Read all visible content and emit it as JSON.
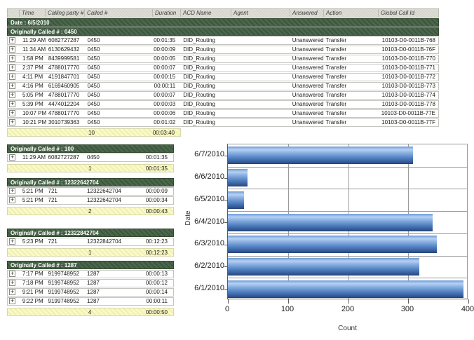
{
  "table": {
    "columns": [
      "Time",
      "Calling party #",
      "Called #",
      "Duration",
      "ACD Name",
      "Agent",
      "Answered",
      "Action",
      "Global Call Id"
    ],
    "date_band": "Date : 6/5/2010",
    "group_band": "Originally Called # : 0450",
    "rows": [
      {
        "time": "11:29 AM",
        "calling": "6082727287",
        "called": "0450",
        "duration": "00:01:35",
        "acd": "DID_Routing",
        "agent": "",
        "answered": "Unanswered",
        "action": "Transfer",
        "global_id": "10103-D0-0011B-768"
      },
      {
        "time": "11:34 AM",
        "calling": "6130629432",
        "called": "0450",
        "duration": "00:00:09",
        "acd": "DID_Routing",
        "agent": "",
        "answered": "Unanswered",
        "action": "Transfer",
        "global_id": "10103-D0-0011B-76F"
      },
      {
        "time": "1:58 PM",
        "calling": "8439999581",
        "called": "0450",
        "duration": "00:00:05",
        "acd": "DID_Routing",
        "agent": "",
        "answered": "Unanswered",
        "action": "Transfer",
        "global_id": "10103-D0-0011B-770"
      },
      {
        "time": "2:37 PM",
        "calling": "4788017770",
        "called": "0450",
        "duration": "00:00:07",
        "acd": "DID_Routing",
        "agent": "",
        "answered": "Unanswered",
        "action": "Transfer",
        "global_id": "10103-D0-0011B-771"
      },
      {
        "time": "4:11 PM",
        "calling": "4191847701",
        "called": "0450",
        "duration": "00:00:15",
        "acd": "DID_Routing",
        "agent": "",
        "answered": "Unanswered",
        "action": "Transfer",
        "global_id": "10103-D0-0011B-772"
      },
      {
        "time": "4:16 PM",
        "calling": "6169460905",
        "called": "0450",
        "duration": "00:00:11",
        "acd": "DID_Routing",
        "agent": "",
        "answered": "Unanswered",
        "action": "Transfer",
        "global_id": "10103-D0-0011B-773"
      },
      {
        "time": "5:05 PM",
        "calling": "4788017770",
        "called": "0450",
        "duration": "00:00:07",
        "acd": "DID_Routing",
        "agent": "",
        "answered": "Unanswered",
        "action": "Transfer",
        "global_id": "10103-D0-0011B-774"
      },
      {
        "time": "5:39 PM",
        "calling": "4474012204",
        "called": "0450",
        "duration": "00:00:03",
        "acd": "DID_Routing",
        "agent": "",
        "answered": "Unanswered",
        "action": "Transfer",
        "global_id": "10103-D0-0011B-778"
      },
      {
        "time": "10:07 PM",
        "calling": "4788017770",
        "called": "0450",
        "duration": "00:00:06",
        "acd": "DID_Routing",
        "agent": "",
        "answered": "Unanswered",
        "action": "Transfer",
        "global_id": "10103-D0-0011B-77E"
      },
      {
        "time": "10:21 PM",
        "calling": "3010739363",
        "called": "0450",
        "duration": "00:01:02",
        "acd": "DID_Routing",
        "agent": "",
        "answered": "Unanswered",
        "action": "Transfer",
        "global_id": "10103-D0-0011B-77F"
      }
    ],
    "summary": {
      "count": "10",
      "duration": "00:03:40"
    }
  },
  "sections": [
    {
      "title": "Originally Called # : 100",
      "rows": [
        {
          "time": "11:29 AM",
          "calling": "6082727287",
          "called": "0450",
          "duration": "00:01:35"
        }
      ],
      "summary": {
        "count": "1",
        "duration": "00:01:35"
      }
    },
    {
      "title": "Originally Called # : 12322642704",
      "rows": [
        {
          "time": "5:21 PM",
          "calling": "721",
          "called": "12322642704",
          "duration": "00:00:09"
        },
        {
          "time": "5:21 PM",
          "calling": "721",
          "called": "12322642704",
          "duration": "00:00:34"
        }
      ],
      "summary": {
        "count": "2",
        "duration": "00:00:43"
      }
    },
    {
      "title": "Originally Called # : 12322842704",
      "rows": [
        {
          "time": "5:23 PM",
          "calling": "721",
          "called": "12322842704",
          "duration": "00:12:23"
        }
      ],
      "summary": {
        "count": "1",
        "duration": "00:12:23"
      }
    },
    {
      "title": "Originally Called # : 1287",
      "rows": [
        {
          "time": "7:17 PM",
          "calling": "9199748952",
          "called": "1287",
          "duration": "00:00:13"
        },
        {
          "time": "7:18 PM",
          "calling": "9199748952",
          "called": "1287",
          "duration": "00:00:12"
        },
        {
          "time": "9:21 PM",
          "calling": "9199748952",
          "called": "1287",
          "duration": "00:00:14"
        },
        {
          "time": "9:22 PM",
          "calling": "9199748952",
          "called": "1287",
          "duration": "00:00:11"
        }
      ],
      "summary": {
        "count": "4",
        "duration": "00:00:50"
      }
    }
  ],
  "chart_data": {
    "type": "bar",
    "orientation": "horizontal",
    "categories": [
      "6/7/2010",
      "6/6/2010",
      "6/5/2010",
      "6/4/2010",
      "6/3/2010",
      "6/2/2010",
      "6/1/2010"
    ],
    "values": [
      308,
      33,
      27,
      340,
      348,
      318,
      392
    ],
    "title": "",
    "xlabel": "Count",
    "ylabel": "Date",
    "xlim": [
      0,
      400
    ],
    "xticks": [
      0,
      100,
      200,
      300,
      400
    ],
    "grid": true,
    "legend": false,
    "bar_color": "#5585c7"
  },
  "icons": {
    "expand": "+"
  },
  "colors": {
    "band_green": "#4a664b",
    "band_green_dark": "#3c563e",
    "summary_yellow": "#fafac8",
    "summary_yellow_dark": "#efefb2",
    "row_border": "#c6c6c0",
    "axis": "#5a5a5a",
    "grid": "#9a9a9a",
    "bar_top": "#6f9bd9",
    "bar_highlight": "#b5d1f1",
    "bar_bottom": "#2b4d87"
  }
}
